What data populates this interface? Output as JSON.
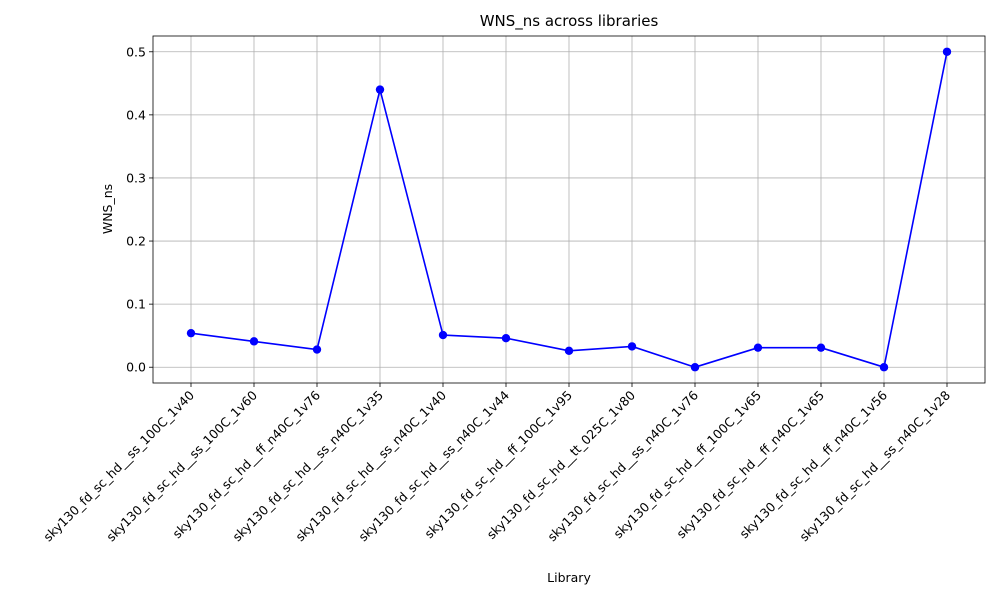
{
  "chart_data": {
    "type": "line",
    "title": "WNS_ns across libraries",
    "xlabel": "Library",
    "ylabel": "WNS_ns",
    "ylim": [
      -0.025,
      0.525
    ],
    "yticks": [
      0.0,
      0.1,
      0.2,
      0.3,
      0.4,
      0.5
    ],
    "ytick_labels": [
      "0.0",
      "0.1",
      "0.2",
      "0.3",
      "0.4",
      "0.5"
    ],
    "grid": true,
    "marker": "circle",
    "colors": {
      "series": "#0000ff"
    },
    "categories": [
      "sky130_fd_sc_hd__ss_100C_1v40",
      "sky130_fd_sc_hd__ss_100C_1v60",
      "sky130_fd_sc_hd__ff_n40C_1v76",
      "sky130_fd_sc_hd__ss_n40C_1v35",
      "sky130_fd_sc_hd__ss_n40C_1v40",
      "sky130_fd_sc_hd__ss_n40C_1v44",
      "sky130_fd_sc_hd__ff_100C_1v95",
      "sky130_fd_sc_hd__tt_025C_1v80",
      "sky130_fd_sc_hd__ss_n40C_1v76",
      "sky130_fd_sc_hd__ff_100C_1v65",
      "sky130_fd_sc_hd__ff_n40C_1v65",
      "sky130_fd_sc_hd__ff_n40C_1v56",
      "sky130_fd_sc_hd__ss_n40C_1v28"
    ],
    "series": [
      {
        "values": [
          0.054,
          0.041,
          0.028,
          0.44,
          0.051,
          0.046,
          0.026,
          0.033,
          0.0,
          0.031,
          0.031,
          0.0,
          0.5
        ]
      }
    ]
  }
}
